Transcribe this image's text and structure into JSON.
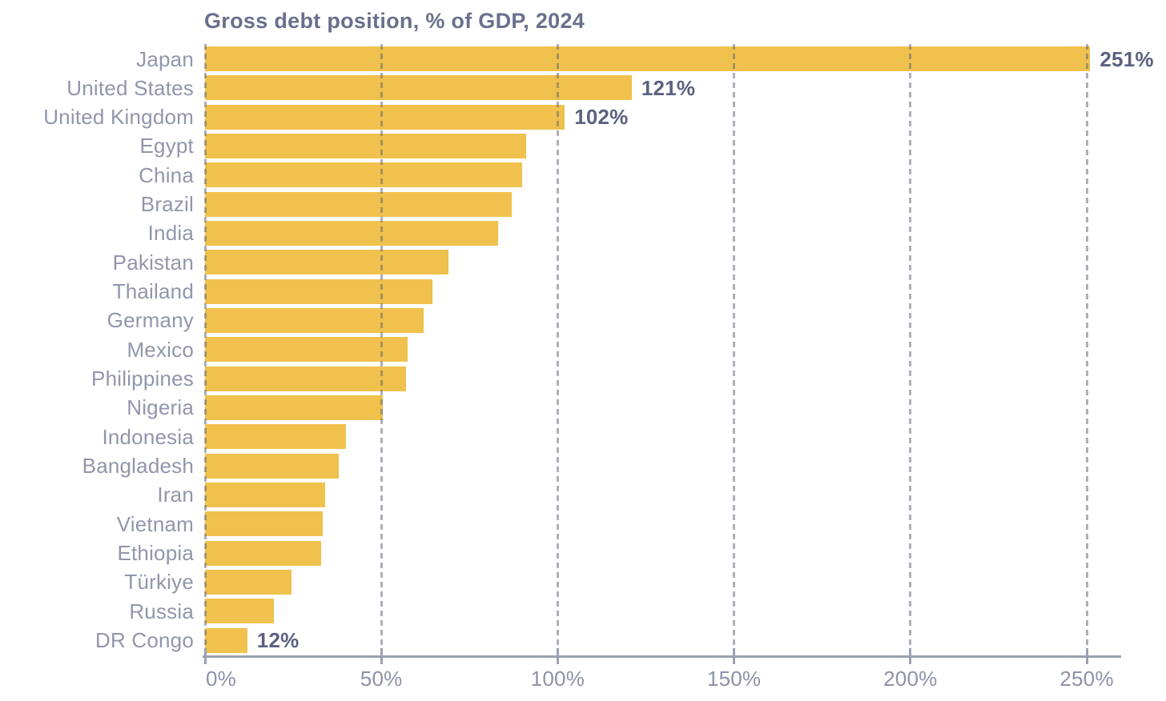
{
  "chart_data": {
    "type": "bar",
    "orientation": "horizontal",
    "title": "Gross debt position, % of GDP, 2024",
    "xlabel": "",
    "ylabel": "",
    "xlim": [
      0,
      250
    ],
    "x_tick_values": [
      0,
      50,
      100,
      150,
      200,
      250
    ],
    "x_tick_labels": [
      "0%",
      "50%",
      "100%",
      "150%",
      "200%",
      "250%"
    ],
    "grid": "dashed-vertical",
    "legend": "none",
    "categories": [
      "Japan",
      "United States",
      "United Kingdom",
      "Egypt",
      "China",
      "Brazil",
      "India",
      "Pakistan",
      "Thailand",
      "Germany",
      "Mexico",
      "Philippines",
      "Nigeria",
      "Indonesia",
      "Bangladesh",
      "Iran",
      "Vietnam",
      "Ethiopia",
      "Türkiye",
      "Russia",
      "DR Congo"
    ],
    "values": [
      251,
      121,
      102,
      91,
      90,
      87,
      83,
      69,
      64.5,
      62,
      57.5,
      57,
      50.5,
      40,
      38,
      34,
      33.3,
      33,
      24.6,
      19.5,
      12
    ],
    "value_labels": [
      "251%",
      "121%",
      "102%",
      "",
      "",
      "",
      "",
      "",
      "",
      "",
      "",
      "",
      "",
      "",
      "",
      "",
      "",
      "",
      "",
      "",
      "12%"
    ]
  },
  "colors": {
    "bar": "#F0C14C",
    "title_text": "#6A708C",
    "category_text": "#9196AC",
    "value_text": "#5C6180",
    "gridline": "#A6AAB8",
    "axis_line": "#9CA1B0",
    "tick_text": "#8C92A8",
    "background": "#FFFFFF"
  }
}
